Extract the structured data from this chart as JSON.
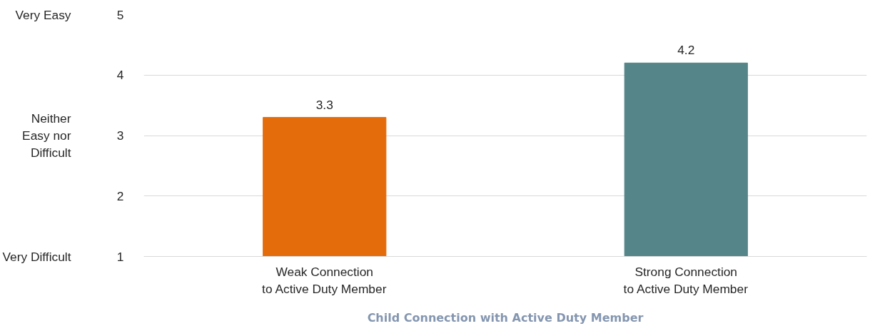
{
  "chart_data": {
    "type": "bar",
    "xlabel": "Child Connection with Active Duty Member",
    "categories": [
      "Weak Connection\nto Active Duty Member",
      "Strong Connection\nto Active Duty Member"
    ],
    "values": [
      3.3,
      4.2
    ],
    "colors": [
      "#e46c0a",
      "#558489"
    ],
    "ylim": [
      1,
      5
    ],
    "yticks": [
      1,
      2,
      3,
      4,
      5
    ],
    "annotations": [
      "Very Easy",
      "Neither Easy nor Difficult",
      "Very Difficult"
    ],
    "grid": "y",
    "data_labels": true
  }
}
